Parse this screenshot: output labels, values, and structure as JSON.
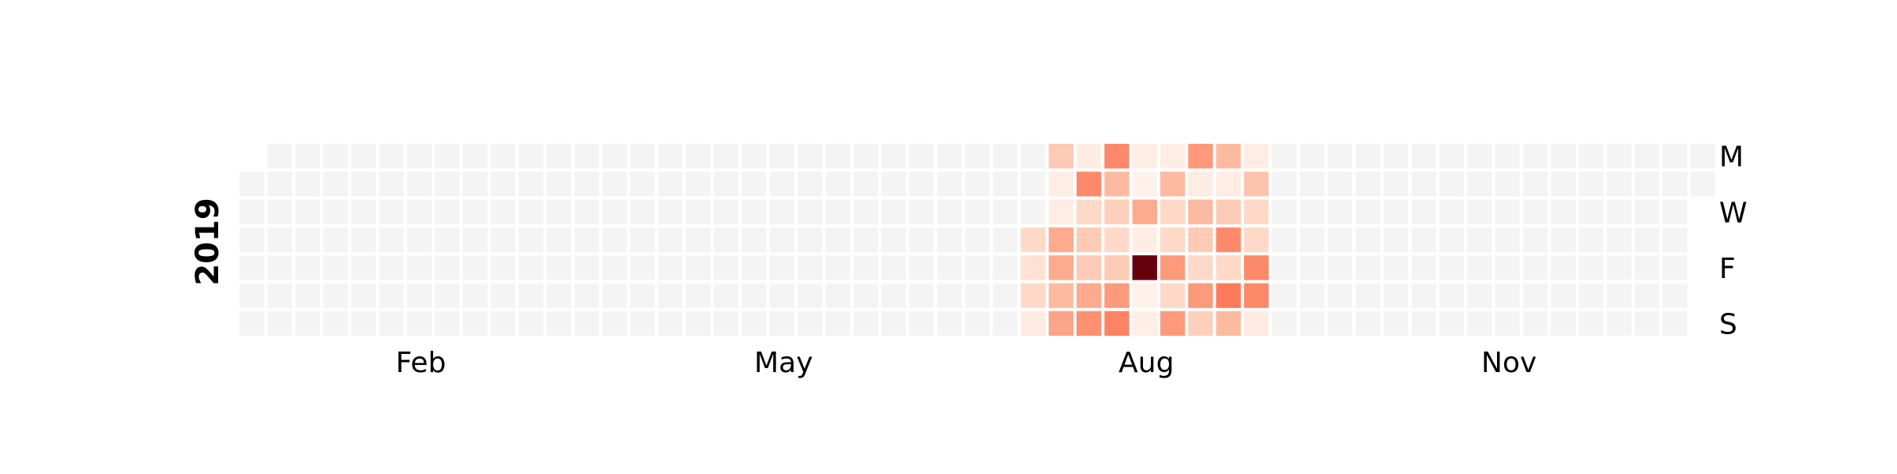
{
  "chart_data": {
    "type": "heatmap",
    "subtype": "calendar",
    "year": "2019",
    "x_tick_labels": [
      "Feb",
      "May",
      "Aug",
      "Nov"
    ],
    "y_tick_labels": [
      "M",
      "W",
      "F",
      "S"
    ],
    "colormap": "Reds",
    "empty_color": "#f4f4f4",
    "grid_line_color": "#ffffff",
    "weeks": 53,
    "weekday_rows": [
      "Mon",
      "Tue",
      "Wed",
      "Thu",
      "Fri",
      "Sat",
      "Sun"
    ],
    "first_day_weekday": 1,
    "active_period_start_week": 28,
    "active_period_end_week": 36,
    "values": {
      "28": [
        null,
        null,
        null,
        0.15,
        0.12,
        0.15,
        0.06
      ],
      "29": [
        0.2,
        0.05,
        0.05,
        0.3,
        0.3,
        0.25,
        0.32
      ],
      "30": [
        0.05,
        0.4,
        0.15,
        0.2,
        0.2,
        0.3,
        0.38
      ],
      "31": [
        0.4,
        0.25,
        0.18,
        0.15,
        0.2,
        0.35,
        0.42
      ],
      "32": [
        0.05,
        0.02,
        0.3,
        0.05,
        1.0,
        0.02,
        0.04
      ],
      "33": [
        0.05,
        0.25,
        0.15,
        0.15,
        0.35,
        0.15,
        0.35
      ],
      "34": [
        0.35,
        0.05,
        0.25,
        0.2,
        0.15,
        0.35,
        0.18
      ],
      "35": [
        0.25,
        0.05,
        0.2,
        0.4,
        0.15,
        0.45,
        0.25
      ],
      "36": [
        0.05,
        0.22,
        0.15,
        0.15,
        0.4,
        0.4,
        0.06
      ]
    }
  }
}
